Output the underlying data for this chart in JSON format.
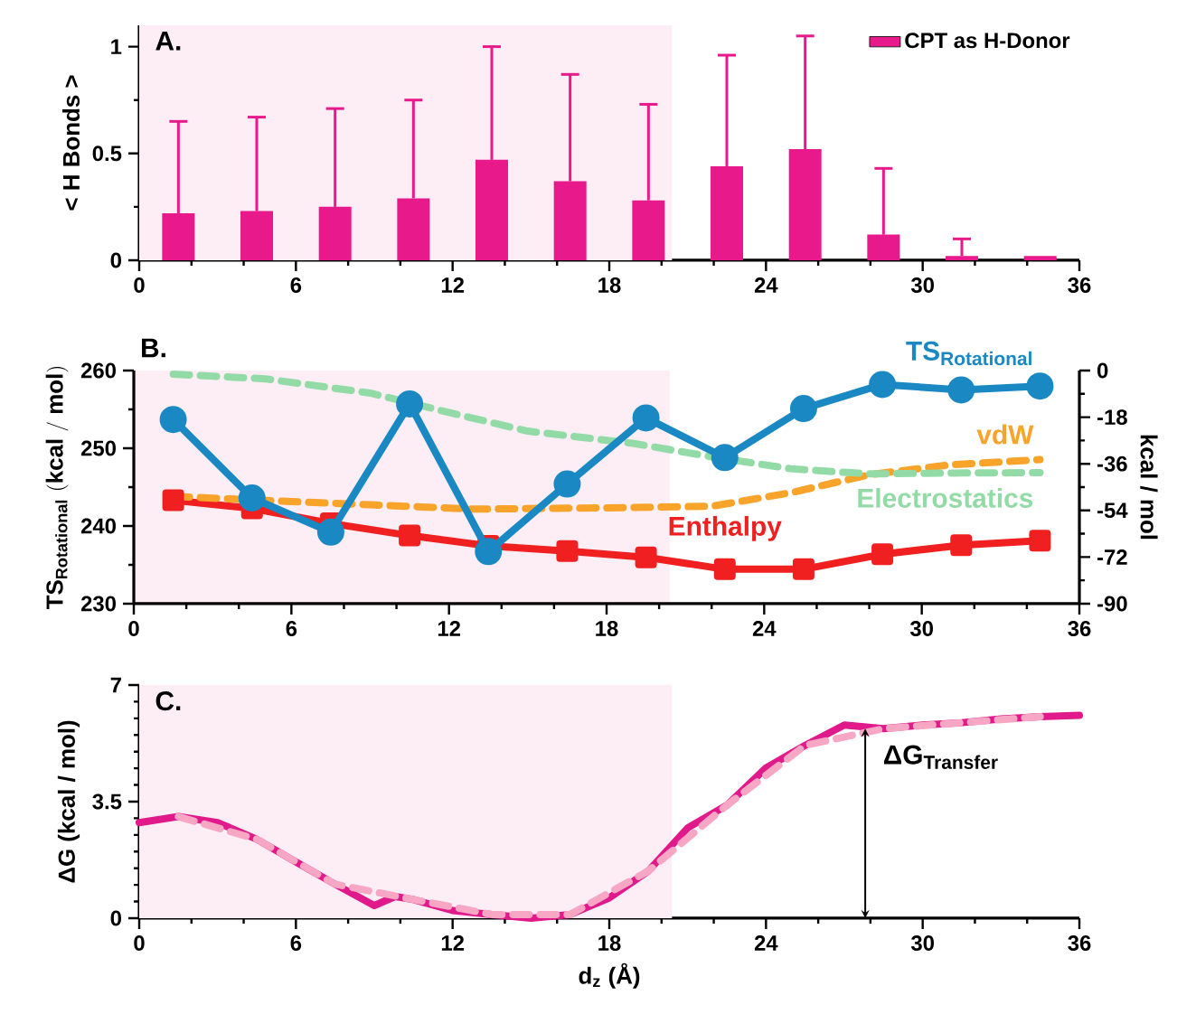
{
  "chart_data": [
    {
      "type": "bar",
      "title": "A.",
      "ylabel": "< H Bonds >",
      "x": [
        1.5,
        4.5,
        7.5,
        10.5,
        13.5,
        16.5,
        19.5,
        22.5,
        25.5,
        28.5,
        31.5,
        34.5
      ],
      "series": [
        {
          "name": "CPT as H-Donor",
          "color": "#e8198b",
          "values": [
            0.22,
            0.23,
            0.25,
            0.29,
            0.47,
            0.37,
            0.28,
            0.44,
            0.52,
            0.12,
            0.02,
            0.02
          ],
          "errors": [
            [
              0.22,
              0.65
            ],
            [
              0.23,
              0.67
            ],
            [
              0.25,
              0.71
            ],
            [
              0.29,
              0.75
            ],
            [
              0.47,
              1.0
            ],
            [
              0.37,
              0.87
            ],
            [
              0.28,
              0.73
            ],
            [
              0.44,
              0.96
            ],
            [
              0.52,
              1.05
            ],
            [
              0.12,
              0.43
            ],
            [
              0.02,
              0.1
            ],
            null
          ]
        }
      ],
      "xlim": [
        0,
        36
      ],
      "xticks": [
        0,
        6,
        12,
        18,
        24,
        30,
        36
      ],
      "ylim": [
        0,
        1.1
      ],
      "yticks": [
        0,
        0.5,
        1
      ],
      "legend": "top right",
      "bands": [
        {
          "axis": "x",
          "from": 0,
          "to": 20.4,
          "color": "#fdeef6"
        }
      ]
    },
    {
      "type": "line",
      "title": "B.",
      "ylabel": "\\mathbf{TS}_{\\mathbf{Rotational}}\\ \\mathbf{(kcal\\ /\\ mol)}",
      "y2label": "kcal / mol",
      "series": [
        {
          "name": "\\mathbf{TS}_{\\mathbf{Rotational}}",
          "color": "#1a88c2",
          "marker": "circle",
          "x": [
            1.5,
            4.5,
            7.5,
            10.5,
            13.5,
            16.5,
            19.5,
            22.5,
            25.5,
            28.5,
            31.5,
            34.5
          ],
          "values": [
            253.7,
            243.6,
            239.2,
            255.7,
            236.7,
            245.4,
            253.9,
            248.8,
            255.1,
            258.2,
            257.5,
            258.0
          ]
        },
        {
          "name": "Enthalpy",
          "color": "#f02020",
          "marker": "square",
          "axis": "y2",
          "x": [
            1.5,
            4.5,
            7.5,
            10.5,
            13.5,
            16.5,
            19.5,
            22.5,
            25.5,
            28.5,
            31.5,
            34.5
          ],
          "values": [
            -50.1,
            -53.2,
            -59.0,
            -63.7,
            -67.7,
            -69.7,
            -72.1,
            -76.7,
            -76.7,
            -70.9,
            -67.4,
            -65.7
          ]
        },
        {
          "name": "vdW",
          "color": "#f8a32a",
          "line_style": "dashed",
          "axis": "y2",
          "x": [
            1.5,
            6,
            9,
            13,
            18,
            22,
            25,
            28,
            31,
            34.5
          ],
          "values": [
            -48.6,
            -50.6,
            -51.8,
            -53.5,
            -53.0,
            -52.4,
            -47.2,
            -40.2,
            -36.5,
            -34.4
          ]
        },
        {
          "name": "Electrostatics",
          "color": "#93dba6",
          "line_style": "dashed",
          "axis": "y2",
          "x": [
            1.5,
            5,
            9,
            12,
            15,
            19,
            22,
            25,
            28,
            31,
            34.5
          ],
          "values": [
            -1.4,
            -3.2,
            -8.7,
            -16.2,
            -23.4,
            -28.1,
            -33.3,
            -37.9,
            -39.9,
            -39.6,
            -39.4
          ]
        }
      ],
      "xlim": [
        0,
        36
      ],
      "xticks": [
        0,
        6,
        12,
        18,
        24,
        30,
        36
      ],
      "ylim": [
        230,
        260
      ],
      "yticks": [
        230,
        240,
        250,
        260
      ],
      "y2lim": [
        -90,
        0
      ],
      "y2ticks": [
        -90,
        -72,
        -54,
        -36,
        -18,
        0
      ],
      "bands": [
        {
          "axis": "x",
          "from": 0,
          "to": 20.4,
          "color": "#fdeef6"
        }
      ]
    },
    {
      "type": "line",
      "title": "C.",
      "xlabel": "d$_{z}$ (Å)",
      "ylabel": "ΔG (kcal / mol)",
      "series": [
        {
          "color": "#e01a8a",
          "x": [
            0,
            1.5,
            3,
            4.5,
            6,
            7.5,
            9,
            9.8,
            10.5,
            12,
            13.5,
            15,
            16.5,
            18,
            19.5,
            21,
            22.5,
            24,
            25.5,
            27,
            28.5,
            30,
            31.5,
            33,
            34.5,
            36
          ],
          "values": [
            2.87,
            3.05,
            2.87,
            2.37,
            1.69,
            1.02,
            0.38,
            0.65,
            0.56,
            0.23,
            0.11,
            0,
            0.11,
            0.61,
            1.42,
            2.71,
            3.39,
            4.51,
            5.19,
            5.8,
            5.69,
            5.8,
            5.87,
            5.98,
            6.05,
            6.09
          ]
        },
        {
          "color": "#f7a6c4",
          "line_style": "dashed",
          "x": [
            1.5,
            4.5,
            7.5,
            10.5,
            13.5,
            16.5,
            19.5,
            22.5,
            25.5,
            28.5,
            31.5,
            34.5
          ],
          "values": [
            3.05,
            2.37,
            1.02,
            0.56,
            0.11,
            0.11,
            1.42,
            3.39,
            5.19,
            5.69,
            5.87,
            6.05
          ]
        }
      ],
      "xlim": [
        0,
        36
      ],
      "xticks": [
        0,
        6,
        12,
        18,
        24,
        30,
        36
      ],
      "ylim": [
        0,
        7
      ],
      "yticks": [
        0,
        3.5,
        7
      ],
      "bands": [
        {
          "axis": "x",
          "from": 0,
          "to": 20.4,
          "color": "#fdeef6"
        }
      ],
      "annotations": [
        {
          "text": "ΔG$_{Transfer}$",
          "x": 27.8,
          "y": 5.69
        }
      ]
    }
  ]
}
